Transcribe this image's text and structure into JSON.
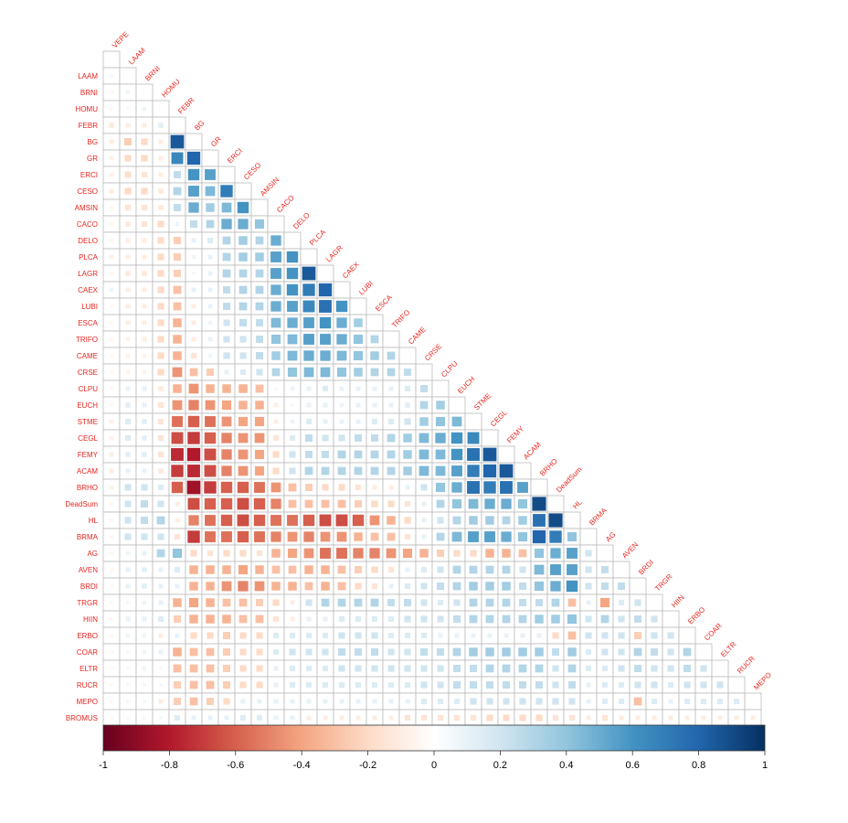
{
  "chart_data": {
    "type": "heatmap",
    "subtype": "correlation-matrix-lower-triangle",
    "title": "",
    "xlabel": "",
    "ylabel": "",
    "row_labels": [
      "LAAM",
      "BRNI",
      "HOMU",
      "FEBR",
      "BG",
      "GR",
      "ERCI",
      "CESO",
      "AMSIN",
      "CACO",
      "DELO",
      "PLCA",
      "LAGR",
      "CAEX",
      "LUBI",
      "ESCA",
      "TRIFO",
      "CAME",
      "CRSE",
      "CLPU",
      "EUCH",
      "STME",
      "CEGL",
      "FEMY",
      "ACAM",
      "BRHO",
      "DeadSum",
      "HL",
      "BRMA",
      "AG",
      "AVEN",
      "BRDI",
      "TRGR",
      "HIIN",
      "ERBO",
      "COAR",
      "ELTR",
      "RUCR",
      "MEPO",
      "BROMUS"
    ],
    "diagonal_labels": [
      "VEPE",
      "LAAM",
      "BRNI",
      "HOMU",
      "FEBR",
      "BG",
      "GR",
      "ERCI",
      "CESO",
      "AMSIN",
      "CACO",
      "DELO",
      "PLCA",
      "LAGR",
      "CAEX",
      "LUBI",
      "ESCA",
      "TRIFO",
      "CAME",
      "CRSE",
      "CLPU",
      "EUCH",
      "STME",
      "CEGL",
      "FEMY",
      "ACAM",
      "BRHO",
      "DeadSum",
      "HL",
      "BRMA",
      "AG",
      "AVEN",
      "BRDI",
      "TRGR",
      "HIIN",
      "ERBO",
      "COAR",
      "ELTR",
      "RUCR",
      "MEPO"
    ],
    "color_range": [
      -1,
      1
    ],
    "colorbar_ticks": [
      "-1",
      "-0.8",
      "-0.6",
      "-0.4",
      "-0.2",
      "0",
      "0.2",
      "0.4",
      "0.6",
      "0.8",
      "1"
    ],
    "colorbar_stops": [
      "#67001f",
      "#b2182b",
      "#d6604d",
      "#f4a582",
      "#fddbc7",
      "#ffffff",
      "#d1e5f0",
      "#92c5de",
      "#4393c3",
      "#2166ac",
      "#053061"
    ],
    "label_color": "#e8261f",
    "grid_color": "#bbbbbb",
    "legend_position": "bottom",
    "matrix": [
      [
        0.05
      ],
      [
        -0.05,
        0.08
      ],
      [
        -0.05,
        -0.05,
        0.08
      ],
      [
        -0.12,
        -0.1,
        -0.1,
        0.12
      ],
      [
        -0.1,
        -0.25,
        -0.2,
        -0.1,
        0.85
      ],
      [
        -0.08,
        -0.2,
        -0.2,
        -0.1,
        0.65,
        0.8
      ],
      [
        -0.08,
        -0.18,
        -0.15,
        -0.1,
        0.25,
        0.6,
        0.55
      ],
      [
        -0.1,
        -0.2,
        -0.2,
        -0.12,
        0.3,
        0.55,
        0.45,
        0.7
      ],
      [
        -0.05,
        -0.15,
        -0.15,
        -0.12,
        0.25,
        0.5,
        0.35,
        0.45,
        0.6
      ],
      [
        -0.05,
        -0.12,
        -0.15,
        -0.2,
        0.08,
        0.25,
        0.3,
        0.5,
        0.5,
        0.4
      ],
      [
        -0.05,
        -0.1,
        -0.1,
        -0.2,
        -0.25,
        0.1,
        0.15,
        0.3,
        0.35,
        0.3,
        0.5
      ],
      [
        -0.08,
        -0.1,
        -0.1,
        -0.2,
        -0.25,
        0.08,
        0.1,
        0.3,
        0.35,
        0.35,
        0.55,
        0.6
      ],
      [
        -0.05,
        -0.12,
        -0.12,
        -0.2,
        -0.25,
        0.05,
        0.1,
        0.3,
        0.3,
        0.3,
        0.55,
        0.6,
        0.85
      ],
      [
        0.08,
        -0.1,
        -0.1,
        -0.2,
        -0.3,
        0.1,
        0.1,
        0.25,
        0.3,
        0.3,
        0.5,
        0.6,
        0.7,
        0.8
      ],
      [
        -0.05,
        -0.1,
        -0.1,
        -0.2,
        -0.3,
        -0.1,
        0.1,
        0.25,
        0.3,
        0.3,
        0.5,
        0.55,
        0.65,
        0.75,
        0.6
      ],
      [
        -0.05,
        -0.1,
        -0.1,
        -0.2,
        -0.35,
        -0.1,
        0.08,
        0.2,
        0.25,
        0.25,
        0.45,
        0.5,
        0.55,
        0.6,
        0.5,
        0.35
      ],
      [
        -0.05,
        -0.08,
        -0.1,
        -0.2,
        -0.35,
        -0.1,
        0.1,
        0.2,
        0.2,
        0.25,
        0.4,
        0.45,
        0.55,
        0.55,
        0.5,
        0.4,
        0.3
      ],
      [
        -0.05,
        -0.08,
        -0.08,
        -0.2,
        -0.35,
        -0.15,
        0.08,
        0.2,
        0.2,
        0.25,
        0.35,
        0.45,
        0.5,
        0.5,
        0.45,
        0.4,
        0.35,
        0.3
      ],
      [
        -0.05,
        -0.08,
        -0.08,
        -0.2,
        -0.45,
        -0.3,
        -0.25,
        0.1,
        0.15,
        0.2,
        0.3,
        0.4,
        0.45,
        0.45,
        0.4,
        0.35,
        0.3,
        0.3,
        0.25
      ],
      [
        -0.05,
        0.1,
        0.1,
        -0.12,
        -0.35,
        -0.45,
        -0.35,
        -0.35,
        -0.35,
        -0.3,
        -0.05,
        0.08,
        0.1,
        0.15,
        0.1,
        0.1,
        0.1,
        0.1,
        0.15,
        0.25
      ],
      [
        -0.05,
        0.12,
        0.1,
        -0.15,
        -0.45,
        -0.5,
        -0.45,
        -0.4,
        -0.35,
        -0.35,
        -0.1,
        0.05,
        0.1,
        0.1,
        0.08,
        0.1,
        0.1,
        0.1,
        0.12,
        0.3,
        0.35
      ],
      [
        -0.08,
        0.15,
        0.12,
        -0.15,
        -0.55,
        -0.6,
        -0.55,
        -0.45,
        -0.4,
        -0.4,
        -0.1,
        0.08,
        0.15,
        0.1,
        0.1,
        0.1,
        0.15,
        0.15,
        0.2,
        0.35,
        0.4,
        0.45
      ],
      [
        -0.08,
        0.15,
        0.12,
        -0.15,
        -0.65,
        -0.7,
        -0.6,
        -0.5,
        -0.45,
        -0.45,
        -0.15,
        0.15,
        0.25,
        0.2,
        0.2,
        0.25,
        0.25,
        0.3,
        0.35,
        0.45,
        0.5,
        0.6,
        0.65
      ],
      [
        -0.1,
        0.12,
        0.12,
        -0.15,
        -0.75,
        -0.8,
        -0.65,
        -0.5,
        -0.45,
        -0.4,
        -0.2,
        0.2,
        0.25,
        0.25,
        0.3,
        0.3,
        0.3,
        0.3,
        0.35,
        0.45,
        0.45,
        0.6,
        0.75,
        0.85
      ],
      [
        -0.1,
        0.1,
        0.1,
        -0.12,
        -0.7,
        -0.75,
        -0.65,
        -0.5,
        -0.45,
        -0.4,
        -0.2,
        0.2,
        0.3,
        0.3,
        0.3,
        0.3,
        0.3,
        0.3,
        0.35,
        0.45,
        0.45,
        0.55,
        0.7,
        0.8,
        0.85
      ],
      [
        -0.08,
        0.2,
        0.2,
        0.15,
        -0.6,
        -0.85,
        -0.7,
        -0.6,
        -0.6,
        -0.55,
        -0.45,
        -0.3,
        -0.25,
        -0.2,
        -0.2,
        -0.15,
        -0.1,
        -0.1,
        0.1,
        0.2,
        0.4,
        0.5,
        0.75,
        0.7,
        0.75,
        0.55
      ],
      [
        -0.05,
        0.2,
        0.25,
        0.2,
        -0.1,
        -0.65,
        -0.6,
        -0.6,
        -0.65,
        -0.6,
        -0.5,
        -0.3,
        -0.3,
        -0.3,
        -0.3,
        -0.25,
        -0.2,
        -0.2,
        -0.15,
        0.1,
        0.3,
        0.4,
        0.45,
        0.5,
        0.5,
        0.4,
        0.9
      ],
      [
        -0.05,
        0.2,
        0.25,
        0.3,
        -0.1,
        -0.5,
        -0.55,
        -0.6,
        -0.65,
        -0.6,
        -0.55,
        -0.55,
        -0.6,
        -0.65,
        -0.65,
        -0.6,
        -0.45,
        -0.35,
        -0.2,
        0.1,
        0.2,
        0.3,
        0.35,
        0.35,
        0.3,
        0.35,
        0.75,
        0.9
      ],
      [
        -0.05,
        0.2,
        0.2,
        0.2,
        -0.15,
        -0.7,
        -0.55,
        -0.55,
        -0.6,
        -0.55,
        -0.5,
        -0.45,
        -0.5,
        -0.45,
        -0.45,
        -0.35,
        -0.3,
        -0.3,
        -0.15,
        0.1,
        0.3,
        0.45,
        0.55,
        0.55,
        0.5,
        0.4,
        0.8,
        0.7,
        0.4
      ],
      [
        -0.05,
        0.08,
        0.1,
        0.3,
        0.4,
        -0.2,
        -0.15,
        -0.2,
        -0.2,
        -0.15,
        -0.35,
        -0.4,
        -0.45,
        -0.55,
        -0.55,
        -0.5,
        -0.5,
        -0.45,
        -0.4,
        -0.35,
        -0.25,
        -0.2,
        -0.2,
        -0.35,
        -0.35,
        -0.3,
        0.4,
        0.5,
        0.55,
        0.2
      ],
      [
        -0.05,
        0.1,
        0.12,
        0.1,
        0.15,
        -0.35,
        -0.35,
        -0.35,
        -0.4,
        -0.35,
        -0.3,
        -0.3,
        -0.35,
        -0.35,
        -0.3,
        -0.25,
        -0.2,
        -0.15,
        0.1,
        0.15,
        0.2,
        0.3,
        0.3,
        0.3,
        0.3,
        0.2,
        0.45,
        0.55,
        0.55,
        0.2,
        0.25
      ],
      [
        -0.05,
        0.1,
        0.12,
        0.1,
        0.1,
        -0.35,
        -0.35,
        -0.45,
        -0.5,
        -0.45,
        -0.35,
        -0.35,
        -0.3,
        -0.35,
        -0.3,
        -0.2,
        -0.15,
        0.1,
        0.15,
        0.2,
        0.25,
        0.3,
        0.35,
        0.35,
        0.35,
        0.25,
        0.4,
        0.5,
        0.6,
        0.2,
        0.25,
        0.25
      ],
      [
        -0.05,
        0.05,
        0.08,
        0.1,
        -0.35,
        -0.4,
        -0.35,
        -0.3,
        -0.3,
        -0.25,
        -0.2,
        -0.1,
        0.2,
        0.3,
        0.3,
        0.3,
        0.3,
        0.25,
        0.25,
        0.2,
        0.15,
        0.2,
        0.3,
        0.3,
        0.3,
        0.25,
        0.25,
        0.3,
        -0.3,
        0.1,
        -0.4,
        0.15,
        0.2
      ],
      [
        -0.05,
        0.1,
        0.1,
        0.15,
        -0.25,
        -0.35,
        -0.35,
        -0.35,
        -0.3,
        -0.3,
        -0.15,
        -0.1,
        0.1,
        0.1,
        0.15,
        0.15,
        0.15,
        0.15,
        0.2,
        0.2,
        0.2,
        0.25,
        0.3,
        0.3,
        0.3,
        0.3,
        0.35,
        0.35,
        0.4,
        0.2,
        0.3,
        0.2,
        0.25,
        0.2
      ],
      [
        -0.05,
        0.08,
        0.08,
        -0.1,
        0.1,
        -0.2,
        -0.2,
        -0.25,
        -0.2,
        -0.2,
        0.15,
        0.15,
        0.15,
        0.15,
        0.2,
        0.2,
        0.2,
        0.15,
        0.15,
        0.15,
        0.1,
        0.1,
        0.1,
        0.1,
        0.1,
        0.1,
        0.1,
        -0.2,
        -0.3,
        0.2,
        0.2,
        0.2,
        -0.25,
        0.2,
        0.2
      ],
      [
        -0.05,
        0.05,
        0.08,
        0.1,
        -0.35,
        -0.3,
        -0.3,
        -0.25,
        -0.2,
        -0.2,
        0.15,
        0.2,
        0.2,
        0.2,
        0.25,
        0.25,
        0.25,
        0.2,
        0.2,
        0.25,
        0.25,
        0.3,
        0.35,
        0.35,
        0.35,
        0.35,
        0.35,
        0.25,
        0.35,
        0.15,
        0.2,
        0.2,
        0.3,
        0.25,
        0.2,
        0.3
      ],
      [
        -0.05,
        0.05,
        0.08,
        0.05,
        -0.3,
        -0.3,
        -0.3,
        -0.25,
        -0.2,
        -0.2,
        0.1,
        0.15,
        0.15,
        0.15,
        0.2,
        0.2,
        0.2,
        0.2,
        0.2,
        0.2,
        0.2,
        0.25,
        0.25,
        0.3,
        0.3,
        0.3,
        0.3,
        0.2,
        0.3,
        0.15,
        0.15,
        0.2,
        0.25,
        0.2,
        0.2,
        0.25,
        0.2
      ],
      [
        -0.05,
        0.05,
        0.05,
        0.05,
        -0.25,
        -0.3,
        -0.3,
        -0.25,
        -0.2,
        -0.2,
        0.1,
        0.15,
        0.15,
        0.15,
        0.15,
        0.15,
        0.15,
        0.15,
        0.15,
        0.2,
        0.2,
        0.25,
        0.25,
        0.25,
        0.25,
        0.25,
        0.25,
        0.2,
        0.25,
        0.1,
        0.15,
        0.15,
        0.2,
        0.2,
        0.15,
        0.2,
        0.2,
        0.2
      ],
      [
        -0.05,
        0.05,
        0.05,
        -0.1,
        -0.25,
        -0.3,
        -0.25,
        -0.2,
        0.1,
        0.1,
        0.1,
        0.1,
        0.1,
        0.1,
        0.1,
        0.1,
        0.1,
        0.1,
        0.1,
        0.15,
        0.15,
        0.15,
        0.2,
        0.2,
        0.2,
        0.2,
        0.2,
        0.2,
        0.2,
        0.1,
        0.15,
        0.15,
        -0.3,
        0.15,
        0.1,
        0.15,
        0.15,
        0.15,
        0.15
      ],
      [
        -0.05,
        0.05,
        0.05,
        0.05,
        0.15,
        0.1,
        0.1,
        0.1,
        0.15,
        0.15,
        0.1,
        0.1,
        -0.1,
        -0.1,
        -0.1,
        -0.1,
        -0.1,
        -0.1,
        -0.15,
        -0.15,
        -0.15,
        -0.15,
        -0.15,
        -0.2,
        -0.2,
        -0.2,
        -0.2,
        -0.15,
        -0.15,
        -0.1,
        -0.15,
        -0.1,
        -0.1,
        -0.1,
        -0.1,
        -0.1,
        -0.1,
        -0.1,
        -0.1,
        -0.1
      ]
    ]
  }
}
